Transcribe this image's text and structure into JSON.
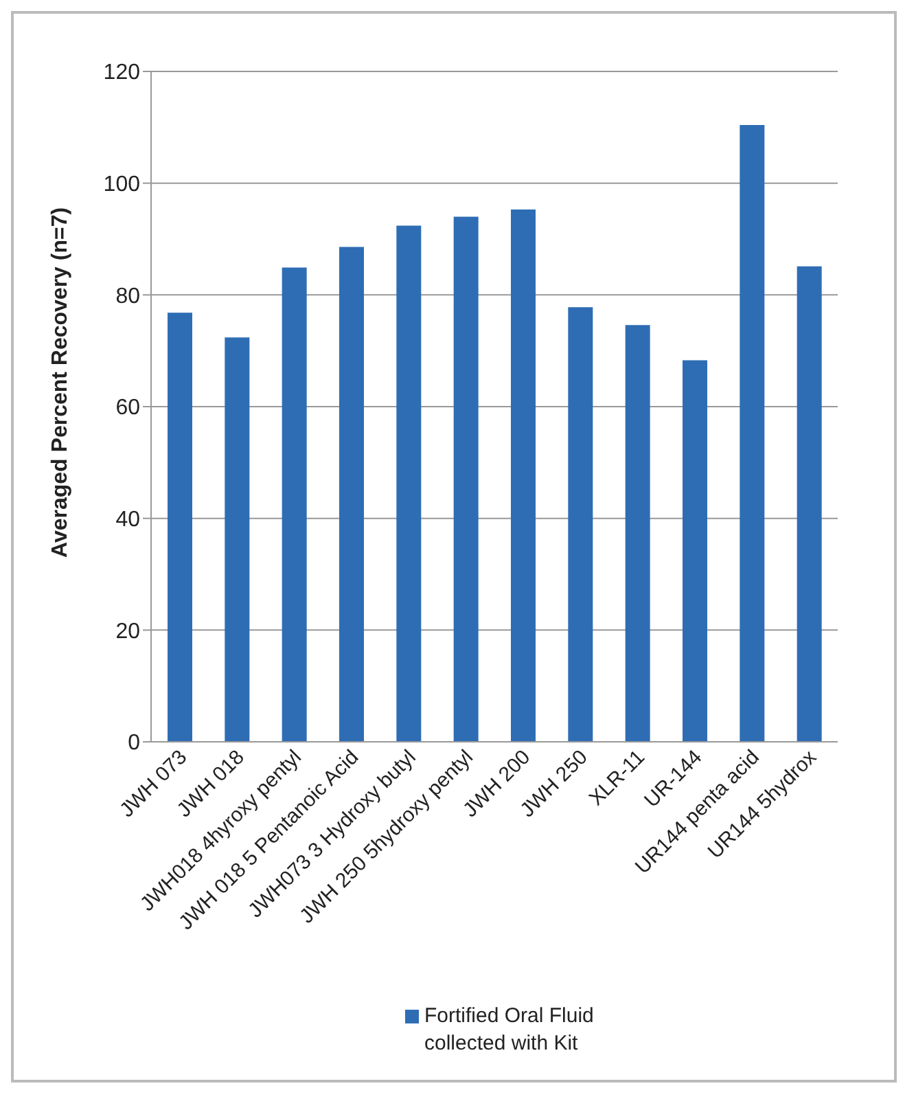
{
  "chart_data": {
    "type": "bar",
    "ylabel": "Averaged Percent Recovery (n=7)",
    "categories": [
      "JWH 073",
      "JWH 018",
      "JWH018 4hyroxy pentyl",
      "JWH 018 5 Pentanoic Acid",
      "JWH073 3 Hydroxy butyl",
      "JWH 250 5hydroxy pentyl",
      "JWH 200",
      "JWH 250",
      "XLR-11",
      "UR-144",
      "UR144 penta acid",
      "UR144 5hydrox"
    ],
    "series": [
      {
        "name": "Fortified Oral Fluid collected with Kit",
        "color": "#2e6db4",
        "values": [
          76.8,
          72.4,
          84.9,
          88.6,
          92.4,
          94.0,
          95.3,
          77.8,
          74.6,
          68.3,
          110.4,
          85.1
        ]
      }
    ],
    "ylim": [
      0,
      120
    ],
    "yticks": [
      0,
      20,
      40,
      60,
      80,
      100,
      120
    ],
    "grid": "y",
    "legend": "bottom"
  }
}
